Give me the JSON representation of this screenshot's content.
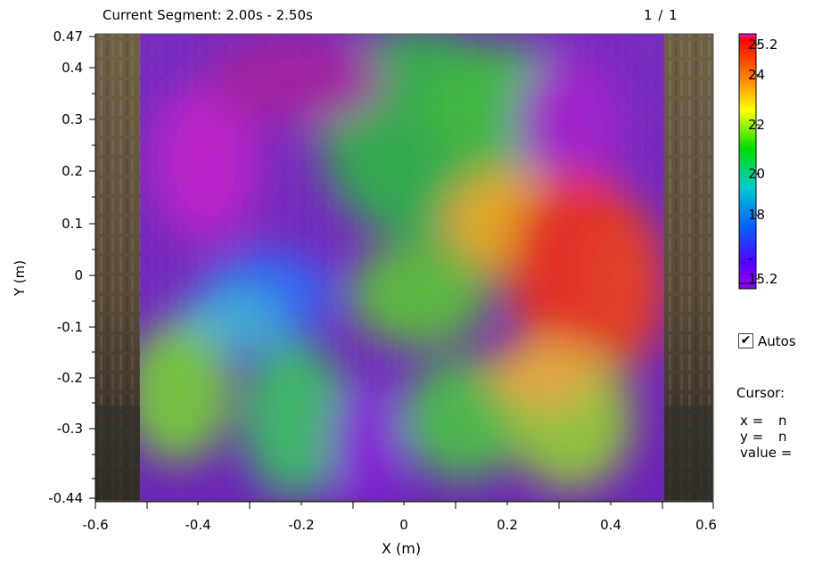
{
  "header": {
    "segment_label": "Current Segment: 2.00s - 2.50s",
    "page_indicator": "1 / 1"
  },
  "chart_data": {
    "type": "heatmap",
    "xlabel": "X (m)",
    "ylabel": "Y (m)",
    "xlim": [
      -0.6,
      0.6
    ],
    "ylim": [
      -0.44,
      0.47
    ],
    "x_ticks": [
      "-0.6",
      "-0.4",
      "-0.2",
      "0",
      "0.2",
      "0.4",
      "0.6"
    ],
    "y_ticks": [
      "0.47",
      "0.4",
      "0.3",
      "0.2",
      "0.1",
      "0",
      "-0.1",
      "-0.2",
      "-0.3",
      "-0.44"
    ],
    "colorbar": {
      "range": [
        15.2,
        25.2
      ],
      "ticks": [
        "25.2",
        "24",
        "22",
        "20",
        "18",
        "-",
        "15.2"
      ]
    }
  },
  "side_panel": {
    "autoscale_label": "Autos",
    "autoscale_checked": true,
    "checkmark": "✔",
    "cursor_title": "Cursor:",
    "cursor_rows": [
      {
        "label": "x =",
        "value": "n"
      },
      {
        "label": "y =",
        "value": "n"
      },
      {
        "label": "value =",
        "value": ""
      }
    ]
  }
}
